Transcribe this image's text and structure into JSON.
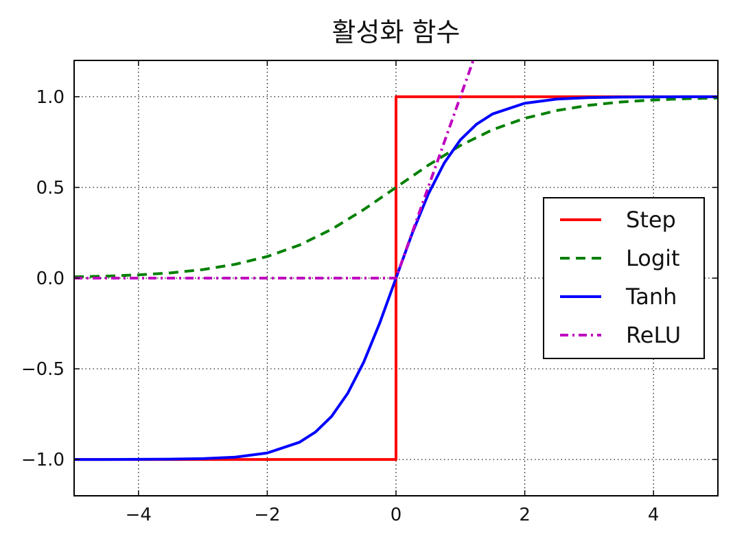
{
  "chart_data": {
    "type": "line",
    "title": "활성화 함수",
    "xlabel": "",
    "ylabel": "",
    "xlim": [
      -5,
      5
    ],
    "ylim": [
      -1.2,
      1.2
    ],
    "grid": true,
    "legend_position": "center-right",
    "x_ticks": [
      -4,
      -2,
      0,
      2,
      4
    ],
    "x_tick_labels": [
      "−4",
      "−2",
      "0",
      "2",
      "4"
    ],
    "y_ticks": [
      -1.0,
      -0.5,
      0.0,
      0.5,
      1.0
    ],
    "y_tick_labels": [
      "−1.0",
      "−0.5",
      "0.0",
      "0.5",
      "1.0"
    ],
    "series": [
      {
        "name": "Step",
        "color": "#ff0000",
        "style": "solid",
        "x": [
          -5,
          -4,
          -3,
          -2,
          -1,
          -0.0001,
          0,
          1,
          2,
          3,
          4,
          5
        ],
        "y": [
          -1,
          -1,
          -1,
          -1,
          -1,
          -1,
          1,
          1,
          1,
          1,
          1,
          1
        ]
      },
      {
        "name": "Logit",
        "color": "#008000",
        "style": "dashed",
        "x": [
          -5,
          -4.5,
          -4,
          -3.5,
          -3,
          -2.5,
          -2,
          -1.5,
          -1,
          -0.5,
          0,
          0.5,
          1,
          1.5,
          2,
          2.5,
          3,
          3.5,
          4,
          4.5,
          5
        ],
        "y": [
          0.007,
          0.011,
          0.018,
          0.029,
          0.047,
          0.076,
          0.119,
          0.182,
          0.269,
          0.378,
          0.5,
          0.622,
          0.731,
          0.818,
          0.881,
          0.924,
          0.953,
          0.971,
          0.982,
          0.989,
          0.993
        ]
      },
      {
        "name": "Tanh",
        "color": "#0000ff",
        "style": "solid",
        "x": [
          -5,
          -4.5,
          -4,
          -3.5,
          -3,
          -2.5,
          -2,
          -1.5,
          -1.25,
          -1,
          -0.75,
          -0.5,
          -0.25,
          0,
          0.25,
          0.5,
          0.75,
          1,
          1.25,
          1.5,
          2,
          2.5,
          3,
          3.5,
          4,
          4.5,
          5
        ],
        "y": [
          -1.0,
          -1.0,
          -0.999,
          -0.998,
          -0.995,
          -0.987,
          -0.964,
          -0.905,
          -0.848,
          -0.762,
          -0.635,
          -0.462,
          -0.245,
          0.0,
          0.245,
          0.462,
          0.635,
          0.762,
          0.848,
          0.905,
          0.964,
          0.987,
          0.995,
          0.998,
          0.999,
          1.0,
          1.0
        ]
      },
      {
        "name": "ReLU",
        "color": "#bf00bf",
        "style": "dashdot",
        "x": [
          -5,
          -4,
          -3,
          -2,
          -1,
          0,
          0.5,
          1,
          1.2
        ],
        "y": [
          0,
          0,
          0,
          0,
          0,
          0,
          0.5,
          1.0,
          1.2
        ]
      }
    ]
  }
}
